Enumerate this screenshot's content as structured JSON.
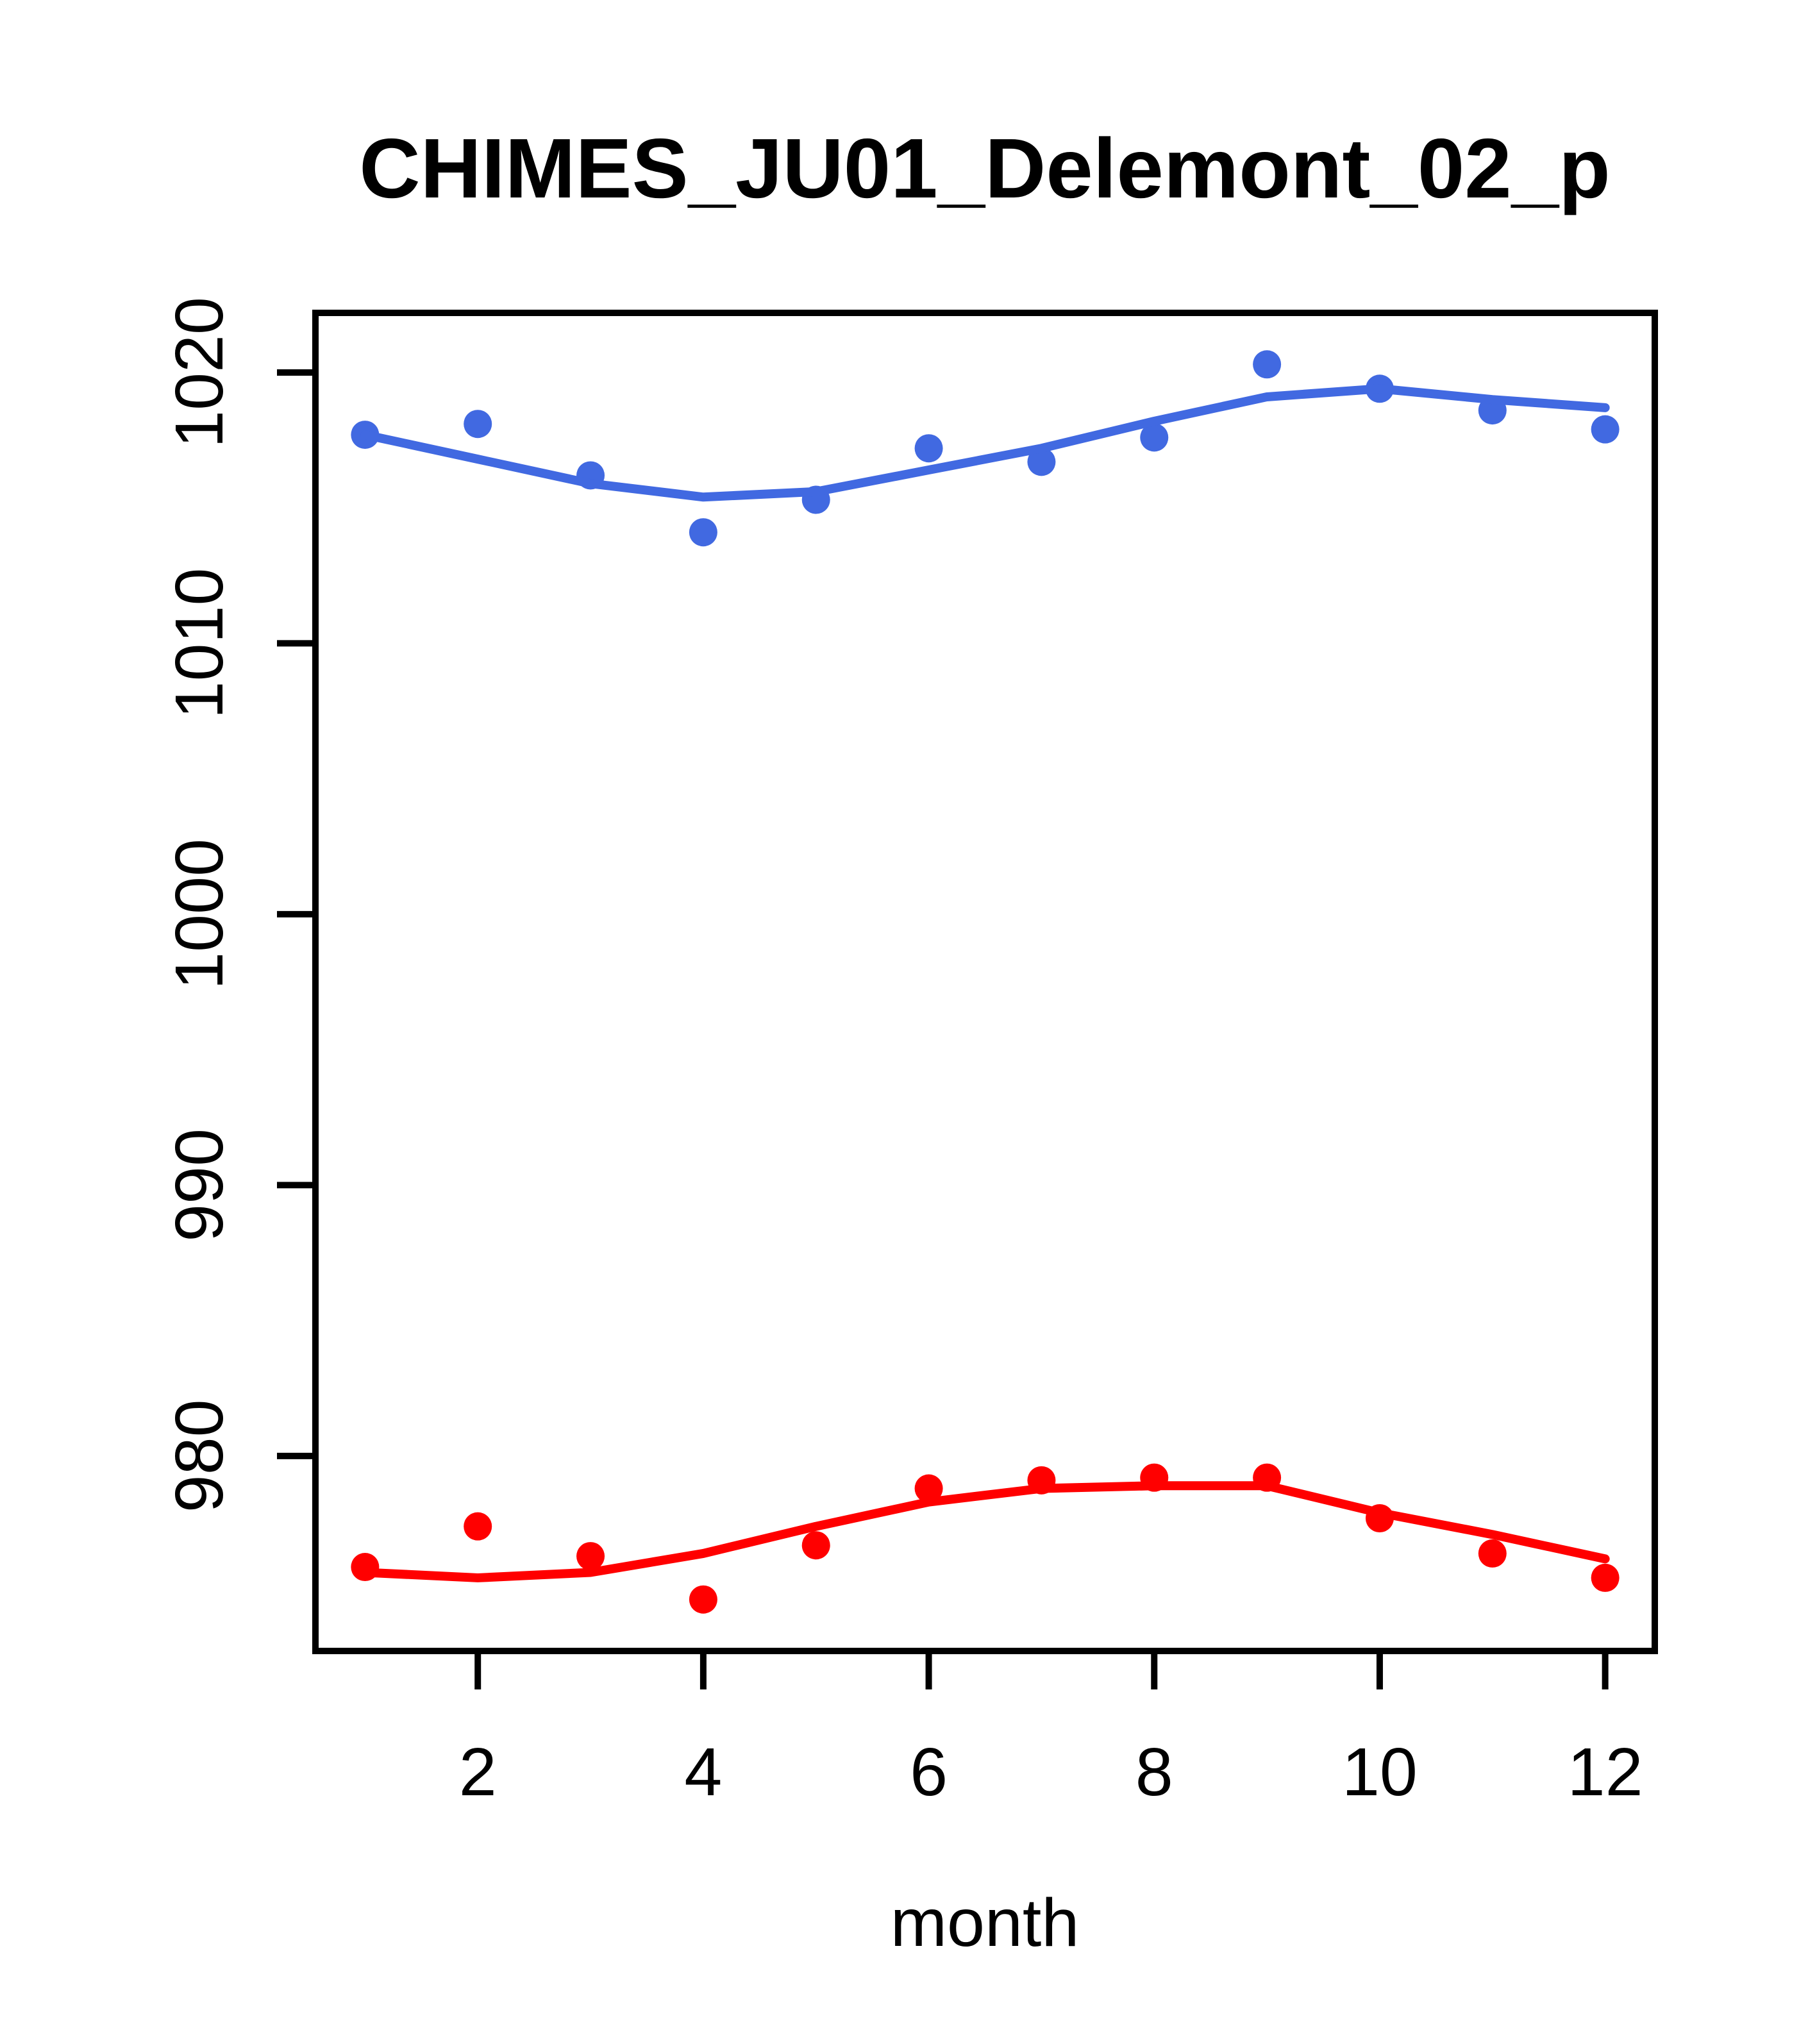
{
  "title": "CHIMES_JU01_Delemont_02_p",
  "chart_data": {
    "type": "scatter",
    "title": "CHIMES_JU01_Delemont_02_p",
    "xlabel": "month",
    "ylabel": "",
    "x": [
      1,
      2,
      3,
      4,
      5,
      6,
      7,
      8,
      9,
      10,
      11,
      12
    ],
    "x_ticks": [
      2,
      4,
      6,
      8,
      10,
      12
    ],
    "y_ticks": [
      980,
      990,
      1000,
      1010,
      1020
    ],
    "xlim": [
      0.56,
      12.44
    ],
    "ylim": [
      972.8,
      1022.2
    ],
    "grid": "off",
    "legend": "none",
    "frame_color": "#000000",
    "series": [
      {
        "name": "upper-points",
        "kind": "points",
        "color": "#4169E1",
        "values": [
          1017.7,
          1018.1,
          1016.2,
          1014.1,
          1015.3,
          1017.2,
          1016.7,
          1017.6,
          1020.3,
          1019.4,
          1018.6,
          1017.9
        ]
      },
      {
        "name": "upper-loess-line",
        "kind": "line",
        "color": "#4169E1",
        "values": [
          1017.7,
          1016.8,
          1015.9,
          1015.4,
          1015.6,
          1016.4,
          1017.2,
          1018.2,
          1019.1,
          1019.4,
          1019.0,
          1018.7
        ]
      },
      {
        "name": "lower-points",
        "kind": "points",
        "color": "#FF0000",
        "values": [
          975.9,
          977.4,
          976.3,
          974.7,
          976.7,
          978.8,
          979.1,
          979.2,
          979.2,
          977.7,
          976.4,
          975.5
        ]
      },
      {
        "name": "lower-loess-line",
        "kind": "line",
        "color": "#FF0000",
        "values": [
          975.7,
          975.5,
          975.7,
          976.4,
          977.4,
          978.3,
          978.8,
          978.9,
          978.9,
          977.9,
          977.1,
          976.2
        ]
      }
    ]
  }
}
